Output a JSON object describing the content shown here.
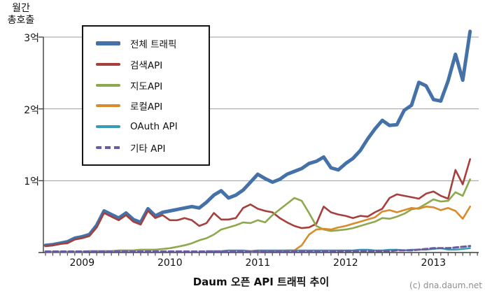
{
  "chart_data": {
    "type": "line",
    "title": "Daum 오픈 API 트래픽 추이",
    "credit": "(c) dna.daum.net",
    "ylabel": "월간 총호출",
    "ylabel_lines": [
      "월간",
      "총호출"
    ],
    "y_unit": "억",
    "ylim": [
      0,
      3.2
    ],
    "grid": true,
    "legend_position": "upper-left-inside",
    "y_ticks": [
      {
        "label": "1억",
        "value": 1
      },
      {
        "label": "2억",
        "value": 2
      },
      {
        "label": "3억",
        "value": 3
      }
    ],
    "x_unit": "month",
    "x_months_total": 59,
    "year_ticks": [
      {
        "label": "2009",
        "month_index": 5
      },
      {
        "label": "2010",
        "month_index": 17
      },
      {
        "label": "2011",
        "month_index": 29
      },
      {
        "label": "2012",
        "month_index": 41
      },
      {
        "label": "2013",
        "month_index": 53
      }
    ],
    "series": [
      {
        "name": "전체 트래픽",
        "color": "#4472A8",
        "width": 5,
        "dash": null,
        "values": [
          0.1,
          0.11,
          0.13,
          0.15,
          0.2,
          0.22,
          0.25,
          0.38,
          0.58,
          0.53,
          0.48,
          0.55,
          0.46,
          0.42,
          0.61,
          0.51,
          0.56,
          0.58,
          0.6,
          0.62,
          0.64,
          0.62,
          0.7,
          0.8,
          0.86,
          0.76,
          0.8,
          0.87,
          0.98,
          1.09,
          1.03,
          0.98,
          1.02,
          1.09,
          1.13,
          1.17,
          1.24,
          1.27,
          1.33,
          1.18,
          1.15,
          1.24,
          1.31,
          1.42,
          1.58,
          1.72,
          1.84,
          1.77,
          1.78,
          1.98,
          2.05,
          2.37,
          2.32,
          2.13,
          2.11,
          2.39,
          2.76,
          2.4,
          3.08
        ]
      },
      {
        "name": "검색API",
        "color": "#A5403D",
        "width": 2.6,
        "dash": null,
        "values": [
          0.09,
          0.1,
          0.12,
          0.13,
          0.18,
          0.2,
          0.23,
          0.35,
          0.55,
          0.5,
          0.45,
          0.52,
          0.43,
          0.39,
          0.58,
          0.48,
          0.52,
          0.45,
          0.45,
          0.48,
          0.45,
          0.37,
          0.41,
          0.55,
          0.46,
          0.46,
          0.48,
          0.62,
          0.67,
          0.61,
          0.58,
          0.56,
          0.48,
          0.42,
          0.37,
          0.34,
          0.35,
          0.4,
          0.64,
          0.56,
          0.53,
          0.51,
          0.48,
          0.51,
          0.5,
          0.56,
          0.61,
          0.76,
          0.81,
          0.79,
          0.77,
          0.75,
          0.82,
          0.85,
          0.79,
          0.75,
          1.15,
          0.95,
          1.3
        ]
      },
      {
        "name": "지도API",
        "color": "#8EA84D",
        "width": 2.6,
        "dash": null,
        "values": [
          0.01,
          0.01,
          0.01,
          0.01,
          0.01,
          0.01,
          0.02,
          0.02,
          0.02,
          0.02,
          0.03,
          0.03,
          0.03,
          0.04,
          0.04,
          0.04,
          0.05,
          0.06,
          0.08,
          0.1,
          0.13,
          0.17,
          0.2,
          0.25,
          0.32,
          0.35,
          0.38,
          0.42,
          0.41,
          0.45,
          0.42,
          0.52,
          0.6,
          0.68,
          0.76,
          0.72,
          0.55,
          0.37,
          0.32,
          0.3,
          0.31,
          0.32,
          0.34,
          0.37,
          0.4,
          0.43,
          0.48,
          0.47,
          0.5,
          0.54,
          0.6,
          0.62,
          0.68,
          0.74,
          0.71,
          0.72,
          0.84,
          0.79,
          1.02
        ]
      },
      {
        "name": "로컬API",
        "color": "#D98B2B",
        "width": 2.6,
        "dash": null,
        "values": [
          null,
          null,
          null,
          null,
          null,
          null,
          null,
          null,
          null,
          null,
          null,
          null,
          null,
          null,
          null,
          null,
          null,
          null,
          null,
          null,
          null,
          null,
          null,
          null,
          null,
          null,
          null,
          null,
          0.01,
          0.01,
          0.02,
          0.02,
          0.02,
          0.03,
          0.03,
          0.1,
          0.25,
          0.32,
          0.33,
          0.32,
          0.35,
          0.37,
          0.4,
          0.43,
          0.46,
          0.49,
          0.57,
          0.59,
          0.56,
          0.59,
          0.62,
          0.61,
          0.64,
          0.63,
          0.59,
          0.62,
          0.58,
          0.47,
          0.64
        ]
      },
      {
        "name": "OAuth API",
        "color": "#389BB5",
        "width": 2.4,
        "dash": null,
        "values": [
          null,
          null,
          null,
          null,
          null,
          null,
          null,
          null,
          null,
          null,
          null,
          null,
          null,
          null,
          null,
          null,
          null,
          null,
          null,
          null,
          null,
          null,
          0.02,
          0.02,
          0.02,
          0.03,
          0.03,
          0.03,
          0.02,
          0.03,
          0.03,
          0.03,
          0.03,
          0.03,
          0.03,
          0.03,
          0.03,
          0.03,
          0.03,
          0.03,
          0.03,
          0.03,
          0.03,
          0.04,
          0.04,
          0.03,
          0.03,
          0.04,
          0.04,
          0.03,
          0.04,
          0.04,
          0.04,
          0.05,
          0.06,
          0.04,
          0.04,
          0.05,
          0.06
        ]
      },
      {
        "name": "기타 API",
        "color": "#6A5B9E",
        "width": 3,
        "dash": [
          7,
          4
        ],
        "values": [
          0.015,
          0.015,
          0.015,
          0.015,
          0.015,
          0.015,
          0.015,
          0.015,
          0.015,
          0.015,
          0.015,
          0.015,
          0.015,
          0.015,
          0.015,
          0.015,
          0.015,
          0.015,
          0.015,
          0.015,
          0.015,
          0.015,
          0.015,
          0.015,
          0.015,
          0.015,
          0.015,
          0.015,
          0.015,
          0.015,
          0.015,
          0.015,
          0.015,
          0.015,
          0.015,
          0.015,
          0.015,
          0.015,
          0.015,
          0.015,
          0.02,
          0.02,
          0.02,
          0.02,
          0.02,
          0.02,
          0.02,
          0.02,
          0.03,
          0.03,
          0.03,
          0.04,
          0.05,
          0.06,
          0.06,
          0.06,
          0.07,
          0.08,
          0.09
        ]
      }
    ]
  }
}
